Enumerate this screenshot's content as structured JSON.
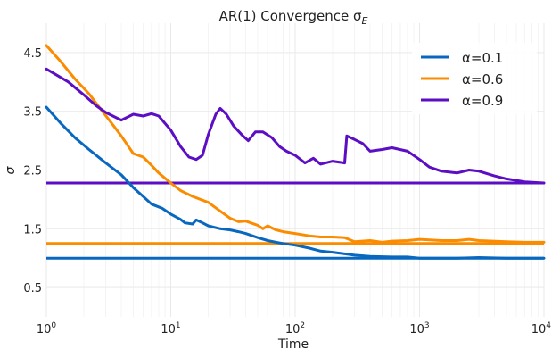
{
  "chart_data": {
    "type": "line",
    "title": "AR(1) Convergence σ",
    "title_subscript": "E",
    "xlabel": "Time",
    "ylabel": "σ",
    "xscale": "log",
    "xlim": [
      1,
      10000
    ],
    "ylim": [
      0,
      5
    ],
    "x_ticks": [
      {
        "value": 1,
        "base": "10",
        "exp": "0"
      },
      {
        "value": 10,
        "base": "10",
        "exp": "1"
      },
      {
        "value": 100,
        "base": "10",
        "exp": "2"
      },
      {
        "value": 1000,
        "base": "10",
        "exp": "3"
      },
      {
        "value": 10000,
        "base": "10",
        "exp": "4"
      }
    ],
    "y_ticks": [
      {
        "value": 0.5,
        "label": "0.5"
      },
      {
        "value": 1.5,
        "label": "1.5"
      },
      {
        "value": 2.5,
        "label": "2.5"
      },
      {
        "value": 3.5,
        "label": "3.5"
      },
      {
        "value": 4.5,
        "label": "4.5"
      }
    ],
    "grid": true,
    "legend_position": "top-right",
    "series": [
      {
        "name": "α=0.1",
        "color": "#0868c0",
        "reference": 1.0,
        "points": [
          [
            1,
            3.57
          ],
          [
            1.3,
            3.3
          ],
          [
            1.7,
            3.05
          ],
          [
            2.2,
            2.85
          ],
          [
            3,
            2.62
          ],
          [
            4,
            2.42
          ],
          [
            5,
            2.2
          ],
          [
            6,
            2.05
          ],
          [
            7,
            1.92
          ],
          [
            8.5,
            1.85
          ],
          [
            10,
            1.75
          ],
          [
            12,
            1.66
          ],
          [
            13,
            1.6
          ],
          [
            15,
            1.58
          ],
          [
            16,
            1.65
          ],
          [
            18,
            1.6
          ],
          [
            20,
            1.55
          ],
          [
            25,
            1.5
          ],
          [
            30,
            1.48
          ],
          [
            35,
            1.45
          ],
          [
            40,
            1.42
          ],
          [
            50,
            1.35
          ],
          [
            60,
            1.3
          ],
          [
            70,
            1.27
          ],
          [
            80,
            1.25
          ],
          [
            100,
            1.22
          ],
          [
            130,
            1.17
          ],
          [
            160,
            1.12
          ],
          [
            200,
            1.1
          ],
          [
            300,
            1.05
          ],
          [
            400,
            1.03
          ],
          [
            600,
            1.02
          ],
          [
            800,
            1.02
          ],
          [
            1000,
            1.0
          ],
          [
            2000,
            1.0
          ],
          [
            3000,
            1.01
          ],
          [
            5000,
            1.0
          ],
          [
            10000,
            1.0
          ]
        ]
      },
      {
        "name": "α=0.6",
        "color": "#fb8c00",
        "reference": 1.25,
        "points": [
          [
            1,
            4.62
          ],
          [
            1.3,
            4.35
          ],
          [
            1.7,
            4.05
          ],
          [
            2.2,
            3.8
          ],
          [
            2.7,
            3.55
          ],
          [
            3.2,
            3.35
          ],
          [
            4,
            3.08
          ],
          [
            5,
            2.78
          ],
          [
            6,
            2.72
          ],
          [
            7,
            2.58
          ],
          [
            8,
            2.45
          ],
          [
            10,
            2.28
          ],
          [
            12,
            2.15
          ],
          [
            15,
            2.05
          ],
          [
            20,
            1.95
          ],
          [
            25,
            1.8
          ],
          [
            30,
            1.68
          ],
          [
            35,
            1.62
          ],
          [
            40,
            1.63
          ],
          [
            50,
            1.56
          ],
          [
            55,
            1.5
          ],
          [
            60,
            1.55
          ],
          [
            70,
            1.48
          ],
          [
            80,
            1.45
          ],
          [
            100,
            1.42
          ],
          [
            130,
            1.38
          ],
          [
            160,
            1.36
          ],
          [
            200,
            1.36
          ],
          [
            250,
            1.35
          ],
          [
            300,
            1.28
          ],
          [
            400,
            1.3
          ],
          [
            500,
            1.27
          ],
          [
            600,
            1.29
          ],
          [
            800,
            1.3
          ],
          [
            1000,
            1.32
          ],
          [
            1500,
            1.3
          ],
          [
            2000,
            1.3
          ],
          [
            2500,
            1.32
          ],
          [
            3000,
            1.3
          ],
          [
            5000,
            1.28
          ],
          [
            7000,
            1.27
          ],
          [
            10000,
            1.27
          ]
        ]
      },
      {
        "name": "α=0.9",
        "color": "#5b0ec4",
        "reference": 2.28,
        "points": [
          [
            1,
            4.22
          ],
          [
            1.5,
            4.0
          ],
          [
            2,
            3.78
          ],
          [
            2.5,
            3.6
          ],
          [
            3,
            3.48
          ],
          [
            4,
            3.35
          ],
          [
            5,
            3.45
          ],
          [
            6,
            3.42
          ],
          [
            7,
            3.46
          ],
          [
            8,
            3.42
          ],
          [
            10,
            3.18
          ],
          [
            12,
            2.9
          ],
          [
            14,
            2.72
          ],
          [
            16,
            2.68
          ],
          [
            18,
            2.75
          ],
          [
            20,
            3.1
          ],
          [
            23,
            3.45
          ],
          [
            25,
            3.55
          ],
          [
            28,
            3.45
          ],
          [
            32,
            3.25
          ],
          [
            38,
            3.08
          ],
          [
            42,
            3.0
          ],
          [
            48,
            3.15
          ],
          [
            55,
            3.15
          ],
          [
            65,
            3.05
          ],
          [
            75,
            2.9
          ],
          [
            85,
            2.82
          ],
          [
            100,
            2.75
          ],
          [
            120,
            2.62
          ],
          [
            140,
            2.7
          ],
          [
            160,
            2.6
          ],
          [
            200,
            2.65
          ],
          [
            250,
            2.62
          ],
          [
            260,
            3.08
          ],
          [
            300,
            3.02
          ],
          [
            350,
            2.95
          ],
          [
            400,
            2.82
          ],
          [
            500,
            2.85
          ],
          [
            600,
            2.88
          ],
          [
            800,
            2.82
          ],
          [
            1000,
            2.68
          ],
          [
            1200,
            2.55
          ],
          [
            1500,
            2.48
          ],
          [
            2000,
            2.45
          ],
          [
            2500,
            2.5
          ],
          [
            3000,
            2.48
          ],
          [
            4000,
            2.4
          ],
          [
            5000,
            2.35
          ],
          [
            7000,
            2.3
          ],
          [
            10000,
            2.28
          ]
        ]
      }
    ]
  }
}
